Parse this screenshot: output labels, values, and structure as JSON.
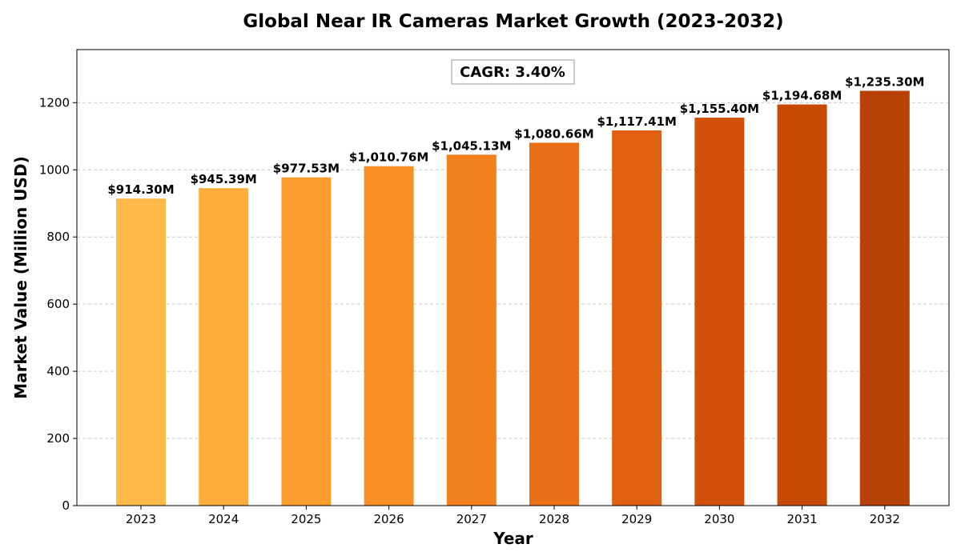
{
  "chart_data": {
    "type": "bar",
    "title": "Global Near IR Cameras Market Growth (2023-2032)",
    "xlabel": "Year",
    "ylabel": "Market Value (Million USD)",
    "categories": [
      "2023",
      "2024",
      "2025",
      "2026",
      "2027",
      "2028",
      "2029",
      "2030",
      "2031",
      "2032"
    ],
    "values": [
      914.3,
      945.39,
      977.53,
      1010.76,
      1045.13,
      1080.66,
      1117.41,
      1155.4,
      1194.68,
      1235.3
    ],
    "data_labels": [
      "$914.30M",
      "$945.39M",
      "$977.53M",
      "$1,010.76M",
      "$1,045.13M",
      "$1,080.66M",
      "$1,117.41M",
      "$1,155.40M",
      "$1,194.68M",
      "$1,235.30M"
    ],
    "colors": [
      "#FFBA4A",
      "#FEAD3C",
      "#FC9E2F",
      "#F78F24",
      "#F1801D",
      "#E97016",
      "#DE6010",
      "#D1510A",
      "#C64A03",
      "#B84105"
    ],
    "ylim": [
      0,
      1358
    ],
    "yticks": [
      0,
      200,
      400,
      600,
      800,
      1000,
      1200
    ],
    "grid": true,
    "annotation": "CAGR: 3.40%"
  }
}
